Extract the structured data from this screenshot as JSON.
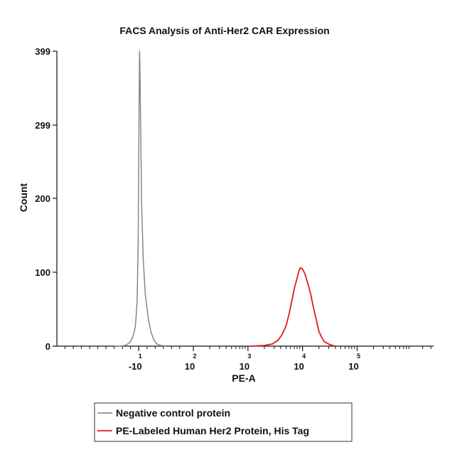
{
  "chart_data": {
    "type": "line",
    "title": "FACS Analysis of Anti-Her2 CAR Expression",
    "xlabel": "PE-A",
    "ylabel": "Count",
    "ylim": [
      0,
      399
    ],
    "y_ticks": [
      {
        "value": 0,
        "label": "0"
      },
      {
        "value": 100,
        "label": "100"
      },
      {
        "value": 200,
        "label": "200"
      },
      {
        "value": 299,
        "label": "299"
      },
      {
        "value": 399,
        "label": "399"
      }
    ],
    "x_scale": "biexponential",
    "xlim": [
      -1.5,
      5.4
    ],
    "x_ticks": [
      {
        "pos": 0,
        "base": "-10",
        "exp": "1"
      },
      {
        "pos": 1,
        "base": "10",
        "exp": "2"
      },
      {
        "pos": 2,
        "base": "10",
        "exp": "3"
      },
      {
        "pos": 3,
        "base": "10",
        "exp": "4"
      },
      {
        "pos": 4,
        "base": "10",
        "exp": "5"
      }
    ],
    "legend_position": "bottom",
    "series": [
      {
        "name": "Negative control protein",
        "color": "#7f7f7f",
        "points": [
          [
            -0.45,
            0
          ],
          [
            -0.3,
            0
          ],
          [
            -0.22,
            2
          ],
          [
            -0.15,
            6
          ],
          [
            -0.1,
            14
          ],
          [
            -0.06,
            28
          ],
          [
            -0.03,
            60
          ],
          [
            -0.01,
            140
          ],
          [
            0.0,
            260
          ],
          [
            0.01,
            360
          ],
          [
            0.015,
            399
          ],
          [
            0.02,
            380
          ],
          [
            0.035,
            300
          ],
          [
            0.05,
            200
          ],
          [
            0.08,
            120
          ],
          [
            0.12,
            70
          ],
          [
            0.17,
            40
          ],
          [
            0.22,
            20
          ],
          [
            0.28,
            8
          ],
          [
            0.33,
            3
          ],
          [
            0.4,
            1
          ],
          [
            0.5,
            0
          ]
        ]
      },
      {
        "name": "PE-Labeled Human Her2 Protein, His Tag",
        "color": "#e41a1c",
        "points": [
          [
            2.05,
            0
          ],
          [
            2.3,
            1
          ],
          [
            2.45,
            3
          ],
          [
            2.55,
            8
          ],
          [
            2.62,
            15
          ],
          [
            2.7,
            28
          ],
          [
            2.75,
            42
          ],
          [
            2.8,
            60
          ],
          [
            2.85,
            78
          ],
          [
            2.9,
            92
          ],
          [
            2.93,
            101
          ],
          [
            2.96,
            106
          ],
          [
            3.0,
            104
          ],
          [
            3.03,
            100
          ],
          [
            3.06,
            94
          ],
          [
            3.1,
            84
          ],
          [
            3.15,
            70
          ],
          [
            3.2,
            52
          ],
          [
            3.25,
            36
          ],
          [
            3.3,
            20
          ],
          [
            3.35,
            12
          ],
          [
            3.4,
            6
          ],
          [
            3.5,
            2
          ],
          [
            3.6,
            0
          ]
        ]
      }
    ]
  }
}
